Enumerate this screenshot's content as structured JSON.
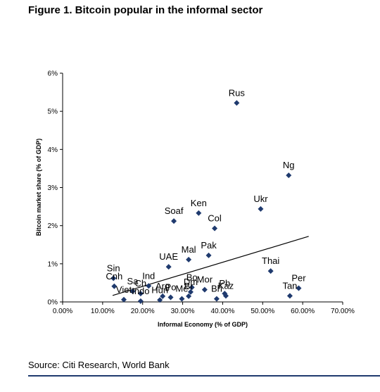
{
  "figure": {
    "title": "Figure 1. Bitcoin popular in the informal sector",
    "source": "Source: Citi Research, World Bank"
  },
  "chart_data": {
    "type": "scatter",
    "xlabel": "Informal Economy (% of GDP)",
    "ylabel": "Bitcoin market share (% of GDP)",
    "xlim": [
      0,
      70
    ],
    "ylim": [
      0,
      6
    ],
    "x_ticks": [
      "0.00%",
      "10.00%",
      "20.00%",
      "30.00%",
      "40.00%",
      "50.00%",
      "60.00%",
      "70.00%"
    ],
    "y_ticks": [
      "0%",
      "1%",
      "2%",
      "3%",
      "4%",
      "5%",
      "6%"
    ],
    "grid": false,
    "marker_color": "#1f3a6e",
    "trendline": {
      "x": [
        12.5,
        61.5
      ],
      "y": [
        0.17,
        1.72
      ]
    },
    "points": [
      {
        "label": "Rus",
        "x": 43.5,
        "y": 5.22
      },
      {
        "label": "Ng",
        "x": 56.5,
        "y": 3.32
      },
      {
        "label": "Ukr",
        "x": 49.5,
        "y": 2.44
      },
      {
        "label": "Ken",
        "x": 34.0,
        "y": 2.33
      },
      {
        "label": "Soaf",
        "x": 27.8,
        "y": 2.12
      },
      {
        "label": "Col",
        "x": 38.0,
        "y": 1.93
      },
      {
        "label": "Pak",
        "x": 36.5,
        "y": 1.22
      },
      {
        "label": "Mal",
        "x": 31.5,
        "y": 1.11
      },
      {
        "label": "UAE",
        "x": 26.5,
        "y": 0.92
      },
      {
        "label": "Thai",
        "x": 52.0,
        "y": 0.81
      },
      {
        "label": "Per",
        "x": 59.0,
        "y": 0.36
      },
      {
        "label": "Tan",
        "x": 56.8,
        "y": 0.16
      },
      {
        "label": "Sin",
        "x": 12.7,
        "y": 0.62
      },
      {
        "label": "Cnh",
        "x": 12.9,
        "y": 0.41
      },
      {
        "label": "Sa",
        "x": 17.5,
        "y": 0.28
      },
      {
        "label": "Ch",
        "x": 19.5,
        "y": 0.22
      },
      {
        "label": "Ind",
        "x": 21.5,
        "y": 0.42
      },
      {
        "label": "Viet",
        "x": 15.3,
        "y": 0.06
      },
      {
        "label": "Indo",
        "x": 19.5,
        "y": 0.02
      },
      {
        "label": "Hun",
        "x": 24.3,
        "y": 0.05
      },
      {
        "label": "Arg",
        "x": 25.0,
        "y": 0.15
      },
      {
        "label": "Po",
        "x": 27.0,
        "y": 0.12
      },
      {
        "label": "Me",
        "x": 29.8,
        "y": 0.08
      },
      {
        "label": "Br",
        "x": 31.5,
        "y": 0.15
      },
      {
        "label": "Dm",
        "x": 32.0,
        "y": 0.26
      },
      {
        "label": "Bo",
        "x": 32.3,
        "y": 0.38
      },
      {
        "label": "Mor",
        "x": 35.5,
        "y": 0.32
      },
      {
        "label": "Bh",
        "x": 38.5,
        "y": 0.08
      },
      {
        "label": "Kaz",
        "x": 40.8,
        "y": 0.16
      },
      {
        "label": "Ph",
        "x": 40.5,
        "y": 0.22
      }
    ]
  }
}
